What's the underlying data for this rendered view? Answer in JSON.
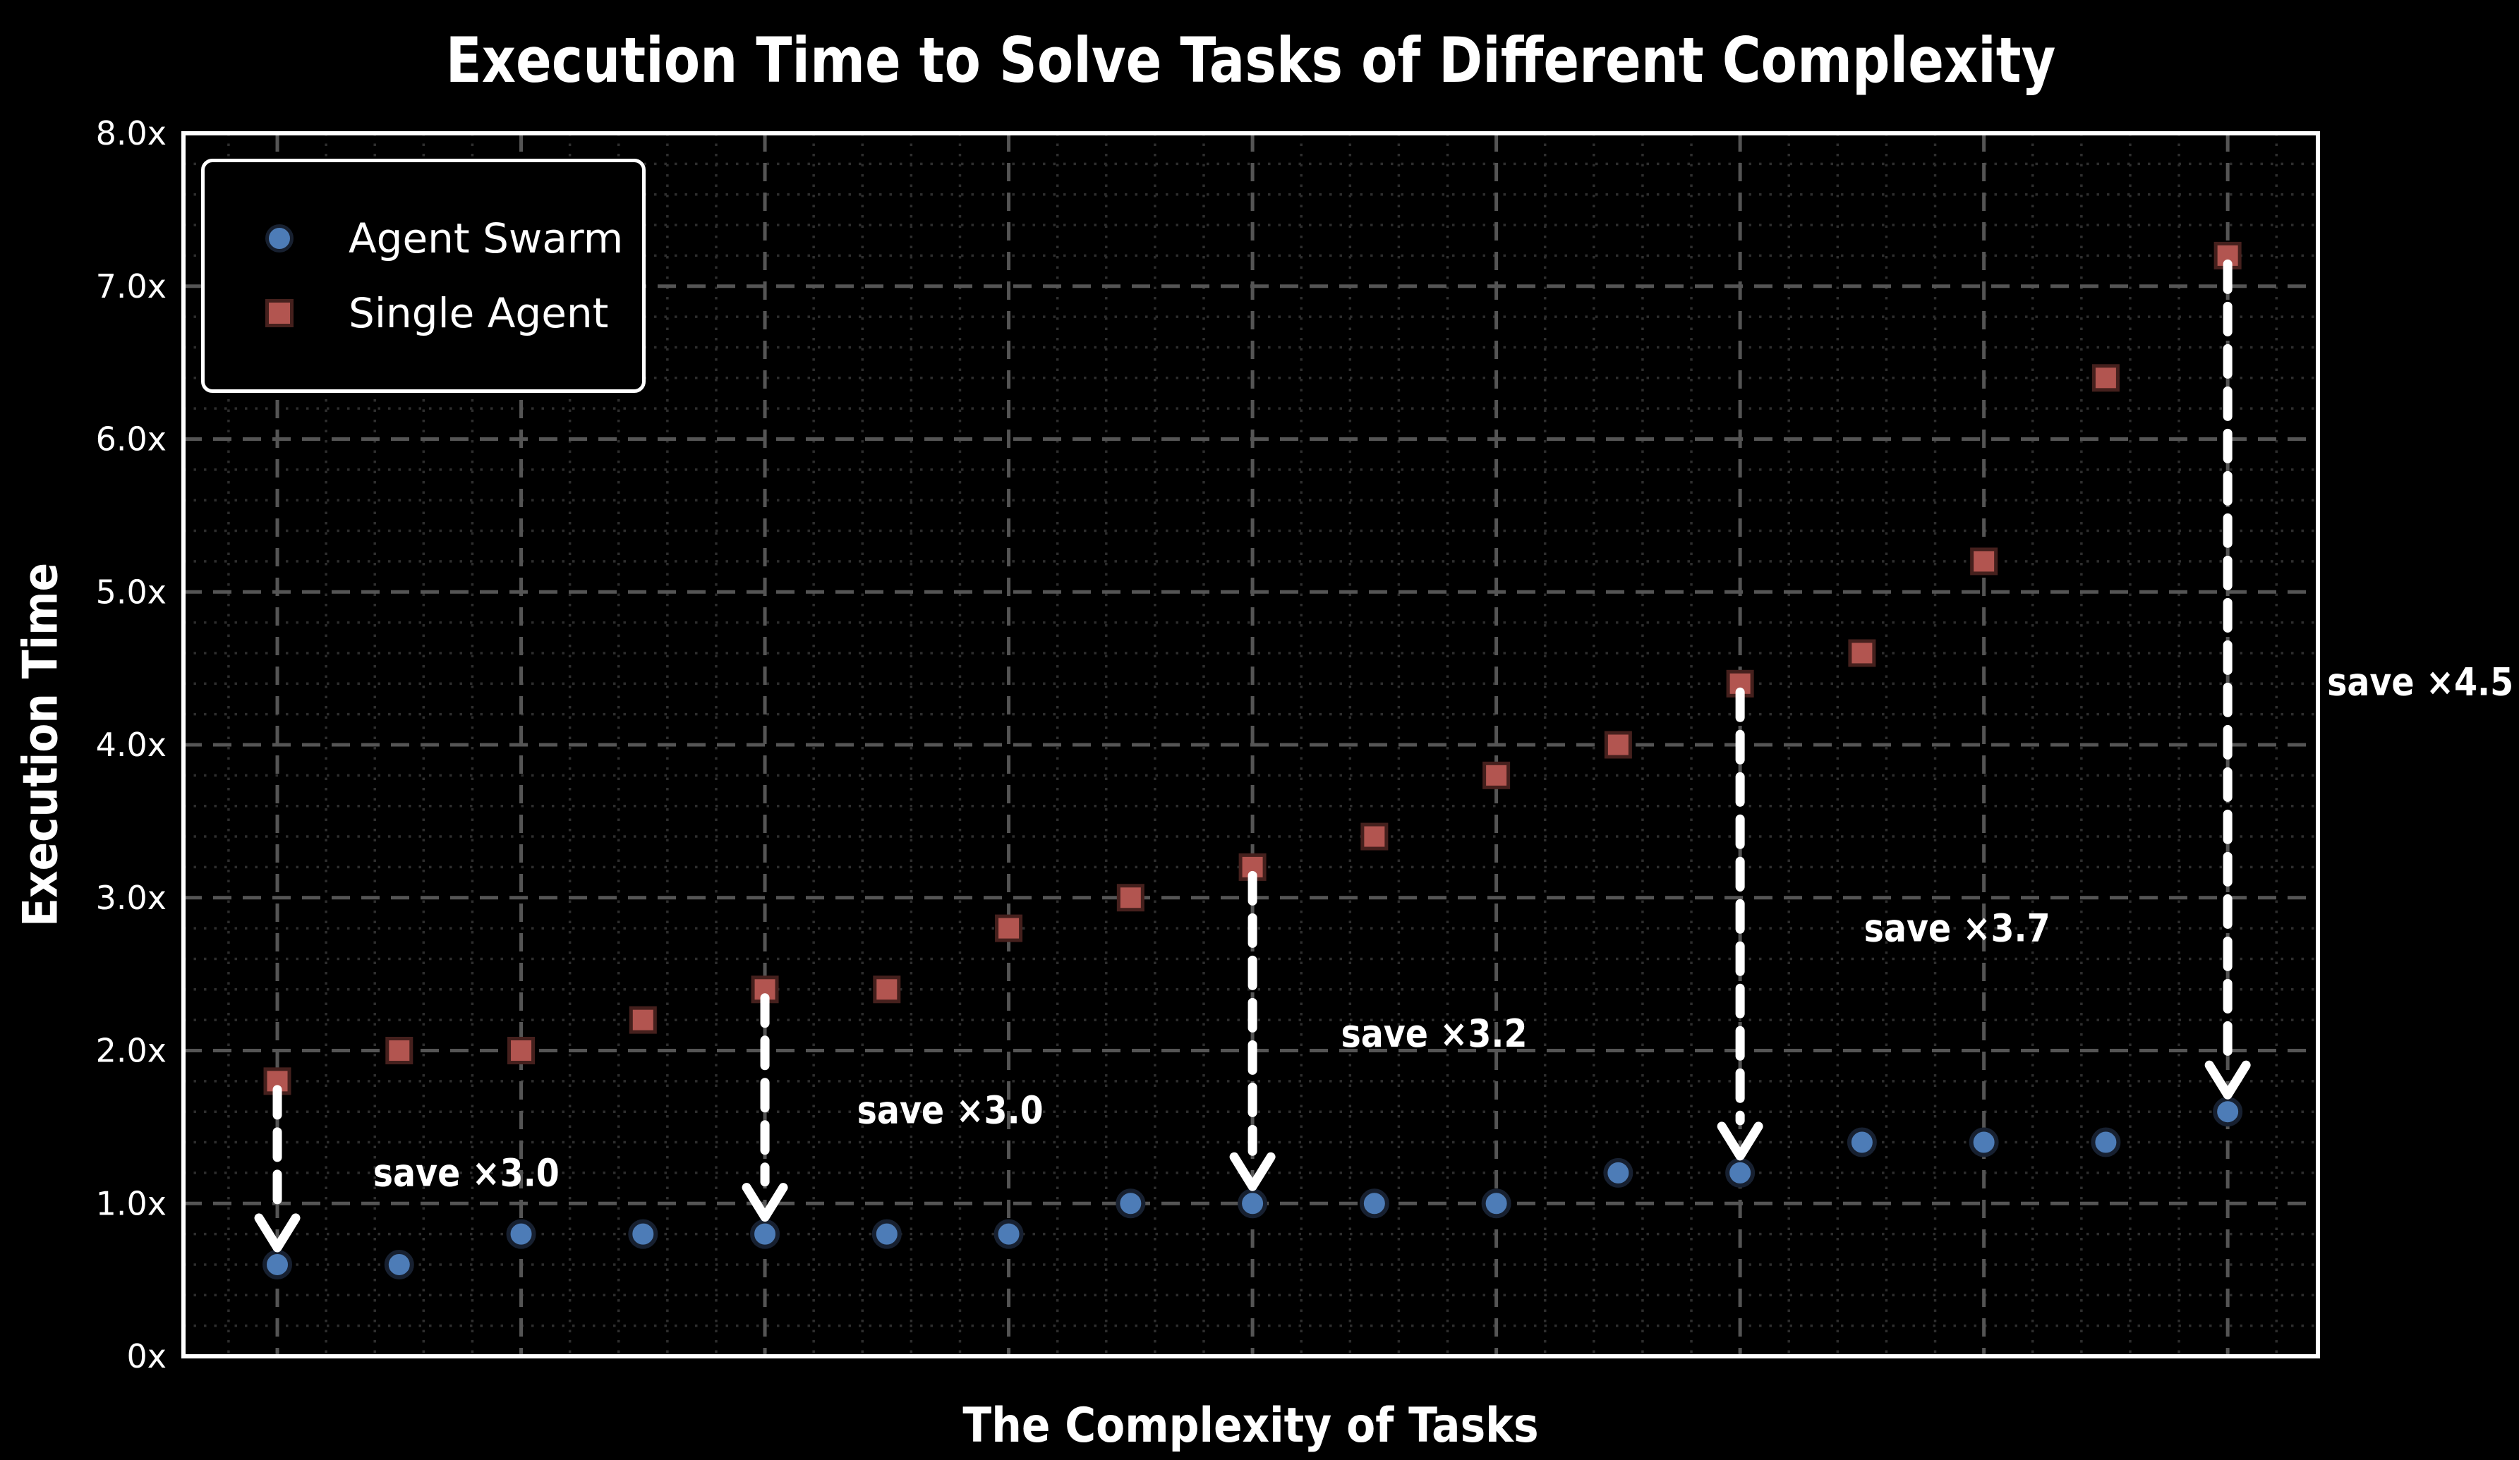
{
  "page": {
    "background": "#000000"
  },
  "chart_data": {
    "type": "scatter",
    "title": "Execution Time to Solve Tasks of Different Complexity",
    "xlabel": "The Complexity of Tasks",
    "ylabel": "Execution Time",
    "x": [
      1,
      2,
      3,
      4,
      5,
      6,
      7,
      8,
      9,
      10,
      11,
      12,
      13,
      14,
      15,
      16,
      17
    ],
    "series": [
      {
        "name": "Agent Swarm",
        "marker": "circle",
        "color": "#4d7cb7",
        "edge_color": "#172030",
        "values": [
          0.6,
          0.6,
          0.8,
          0.8,
          0.8,
          0.8,
          0.8,
          1.0,
          1.0,
          1.0,
          1.0,
          1.2,
          1.2,
          1.4,
          1.4,
          1.4,
          1.6
        ]
      },
      {
        "name": "Single Agent",
        "marker": "square",
        "color": "#b25550",
        "edge_color": "#45201d",
        "values": [
          1.8,
          2.0,
          2.0,
          2.2,
          2.4,
          2.4,
          2.8,
          3.0,
          3.2,
          3.4,
          3.8,
          4.0,
          4.4,
          4.6,
          5.2,
          6.4,
          7.2
        ]
      }
    ],
    "annotations": [
      {
        "label": "save ×3.0",
        "arrow_x": 1,
        "from": 1.8,
        "to": 0.6,
        "label_x": 2.55,
        "label_y": 1.2
      },
      {
        "label": "save ×3.0",
        "arrow_x": 5,
        "from": 2.4,
        "to": 0.8,
        "label_x": 6.52,
        "label_y": 1.61
      },
      {
        "label": "save ×3.2",
        "arrow_x": 9,
        "from": 3.2,
        "to": 1.0,
        "label_x": 10.49,
        "label_y": 2.11
      },
      {
        "label": "save ×3.7",
        "arrow_x": 13,
        "from": 4.4,
        "to": 1.2,
        "label_x": 14.78,
        "label_y": 2.8
      },
      {
        "label": "save ×4.5",
        "arrow_x": 17,
        "from": 7.2,
        "to": 1.6,
        "label_x": 18.58,
        "label_y": 4.41
      }
    ],
    "yticks": [
      {
        "v": 0,
        "label": "0x"
      },
      {
        "v": 1,
        "label": "1.0x"
      },
      {
        "v": 2,
        "label": "2.0x"
      },
      {
        "v": 3,
        "label": "3.0x"
      },
      {
        "v": 4,
        "label": "4.0x"
      },
      {
        "v": 5,
        "label": "5.0x"
      },
      {
        "v": 6,
        "label": "6.0x"
      },
      {
        "v": 7,
        "label": "7.0x"
      },
      {
        "v": 8,
        "label": "8.0x"
      }
    ],
    "ylim": [
      0,
      8
    ],
    "xlim": [
      0.23,
      17.74
    ],
    "x_major_gridlines": [
      1,
      3,
      5,
      7,
      9,
      11,
      13,
      15,
      17
    ],
    "y_major_gridlines": [
      1,
      2,
      3,
      4,
      5,
      6,
      7
    ],
    "x_minor_step": 0.4,
    "y_minor_step": 0.2,
    "grid_major_color": "#555555",
    "grid_minor_color": "#2e2e2e",
    "spine_color": "#ffffff",
    "text_color": "#ffffff",
    "arrow_color": "#ffffff",
    "legend_position": "top-left",
    "grid": "on"
  }
}
